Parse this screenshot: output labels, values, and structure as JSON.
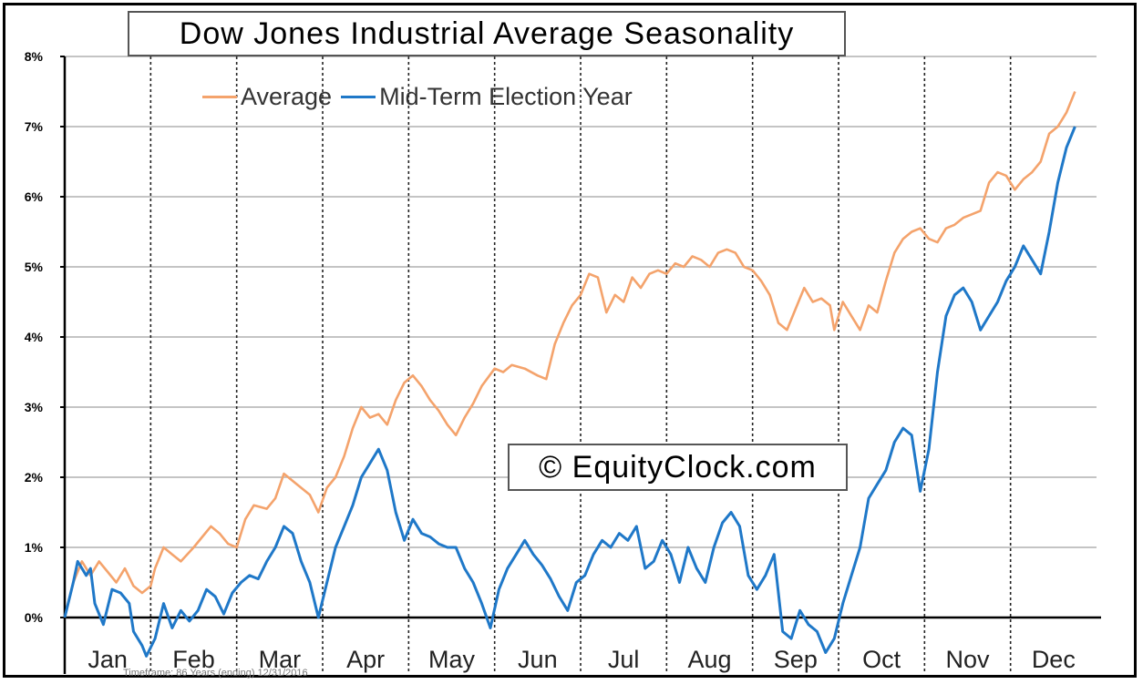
{
  "chart_data": {
    "type": "line",
    "title": "Dow Jones Industrial Average Seasonality",
    "watermark": "© EquityClock.com",
    "footnote": "Timeframe: 86 Years (ending) 12/31/2016",
    "x_categories": [
      "Jan",
      "Feb",
      "Mar",
      "Apr",
      "May",
      "Jun",
      "Jul",
      "Aug",
      "Sep",
      "Oct",
      "Nov",
      "Dec"
    ],
    "y_ticks": [
      "8%",
      "7%",
      "6%",
      "5%",
      "4%",
      "3%",
      "2%",
      "1%",
      "0%"
    ],
    "ylim": [
      -0.5,
      8
    ],
    "xlim": [
      0,
      12
    ],
    "grid": true,
    "legend_placement": "top-left",
    "series": [
      {
        "name": "Average",
        "color": "#F4A36C",
        "points": [
          [
            0,
            0
          ],
          [
            0.1,
            0.5
          ],
          [
            0.2,
            0.8
          ],
          [
            0.3,
            0.6
          ],
          [
            0.4,
            0.8
          ],
          [
            0.5,
            0.65
          ],
          [
            0.6,
            0.5
          ],
          [
            0.7,
            0.7
          ],
          [
            0.8,
            0.45
          ],
          [
            0.9,
            0.35
          ],
          [
            1.0,
            0.45
          ],
          [
            1.05,
            0.7
          ],
          [
            1.15,
            1.0
          ],
          [
            1.25,
            0.9
          ],
          [
            1.35,
            0.8
          ],
          [
            1.5,
            1.0
          ],
          [
            1.6,
            1.15
          ],
          [
            1.7,
            1.3
          ],
          [
            1.8,
            1.2
          ],
          [
            1.9,
            1.05
          ],
          [
            2.0,
            1.0
          ],
          [
            2.1,
            1.4
          ],
          [
            2.2,
            1.6
          ],
          [
            2.35,
            1.55
          ],
          [
            2.45,
            1.7
          ],
          [
            2.55,
            2.05
          ],
          [
            2.7,
            1.9
          ],
          [
            2.85,
            1.75
          ],
          [
            2.95,
            1.5
          ],
          [
            3.05,
            1.85
          ],
          [
            3.15,
            2.0
          ],
          [
            3.25,
            2.3
          ],
          [
            3.35,
            2.7
          ],
          [
            3.45,
            3.0
          ],
          [
            3.55,
            2.85
          ],
          [
            3.65,
            2.9
          ],
          [
            3.75,
            2.75
          ],
          [
            3.85,
            3.1
          ],
          [
            3.95,
            3.35
          ],
          [
            4.05,
            3.45
          ],
          [
            4.15,
            3.3
          ],
          [
            4.25,
            3.1
          ],
          [
            4.35,
            2.95
          ],
          [
            4.45,
            2.75
          ],
          [
            4.55,
            2.6
          ],
          [
            4.65,
            2.85
          ],
          [
            4.75,
            3.05
          ],
          [
            4.85,
            3.3
          ],
          [
            5.0,
            3.55
          ],
          [
            5.1,
            3.5
          ],
          [
            5.2,
            3.6
          ],
          [
            5.35,
            3.55
          ],
          [
            5.5,
            3.45
          ],
          [
            5.6,
            3.4
          ],
          [
            5.7,
            3.9
          ],
          [
            5.8,
            4.2
          ],
          [
            5.9,
            4.45
          ],
          [
            6.0,
            4.6
          ],
          [
            6.1,
            4.9
          ],
          [
            6.2,
            4.85
          ],
          [
            6.3,
            4.35
          ],
          [
            6.4,
            4.6
          ],
          [
            6.5,
            4.5
          ],
          [
            6.6,
            4.85
          ],
          [
            6.7,
            4.7
          ],
          [
            6.8,
            4.9
          ],
          [
            6.9,
            4.95
          ],
          [
            7.0,
            4.9
          ],
          [
            7.1,
            5.05
          ],
          [
            7.2,
            5.0
          ],
          [
            7.3,
            5.15
          ],
          [
            7.4,
            5.1
          ],
          [
            7.5,
            5.0
          ],
          [
            7.6,
            5.2
          ],
          [
            7.7,
            5.25
          ],
          [
            7.8,
            5.2
          ],
          [
            7.9,
            5.0
          ],
          [
            8.0,
            4.95
          ],
          [
            8.1,
            4.8
          ],
          [
            8.2,
            4.6
          ],
          [
            8.3,
            4.2
          ],
          [
            8.4,
            4.1
          ],
          [
            8.5,
            4.4
          ],
          [
            8.6,
            4.7
          ],
          [
            8.7,
            4.5
          ],
          [
            8.8,
            4.55
          ],
          [
            8.9,
            4.45
          ],
          [
            8.95,
            4.1
          ],
          [
            9.05,
            4.5
          ],
          [
            9.15,
            4.3
          ],
          [
            9.25,
            4.1
          ],
          [
            9.35,
            4.45
          ],
          [
            9.45,
            4.35
          ],
          [
            9.55,
            4.8
          ],
          [
            9.65,
            5.2
          ],
          [
            9.75,
            5.4
          ],
          [
            9.85,
            5.5
          ],
          [
            9.95,
            5.55
          ],
          [
            10.05,
            5.4
          ],
          [
            10.15,
            5.35
          ],
          [
            10.25,
            5.55
          ],
          [
            10.35,
            5.6
          ],
          [
            10.45,
            5.7
          ],
          [
            10.55,
            5.75
          ],
          [
            10.65,
            5.8
          ],
          [
            10.75,
            6.2
          ],
          [
            10.85,
            6.35
          ],
          [
            10.95,
            6.3
          ],
          [
            11.05,
            6.1
          ],
          [
            11.15,
            6.25
          ],
          [
            11.25,
            6.35
          ],
          [
            11.35,
            6.5
          ],
          [
            11.45,
            6.9
          ],
          [
            11.55,
            7.0
          ],
          [
            11.65,
            7.2
          ],
          [
            11.75,
            7.5
          ]
        ]
      },
      {
        "name": "Mid-Term Election Year",
        "color": "#1F78C8",
        "points": [
          [
            0,
            0
          ],
          [
            0.1,
            0.5
          ],
          [
            0.15,
            0.8
          ],
          [
            0.25,
            0.6
          ],
          [
            0.3,
            0.7
          ],
          [
            0.35,
            0.2
          ],
          [
            0.45,
            -0.1
          ],
          [
            0.55,
            0.4
          ],
          [
            0.65,
            0.35
          ],
          [
            0.75,
            0.2
          ],
          [
            0.8,
            -0.2
          ],
          [
            0.9,
            -0.4
          ],
          [
            0.95,
            -0.55
          ],
          [
            1.05,
            -0.3
          ],
          [
            1.15,
            0.2
          ],
          [
            1.25,
            -0.15
          ],
          [
            1.35,
            0.1
          ],
          [
            1.45,
            -0.05
          ],
          [
            1.55,
            0.1
          ],
          [
            1.65,
            0.4
          ],
          [
            1.75,
            0.3
          ],
          [
            1.85,
            0.05
          ],
          [
            1.95,
            0.35
          ],
          [
            2.05,
            0.5
          ],
          [
            2.15,
            0.6
          ],
          [
            2.25,
            0.55
          ],
          [
            2.35,
            0.8
          ],
          [
            2.45,
            1.0
          ],
          [
            2.55,
            1.3
          ],
          [
            2.65,
            1.2
          ],
          [
            2.75,
            0.8
          ],
          [
            2.85,
            0.5
          ],
          [
            2.95,
            0.0
          ],
          [
            3.05,
            0.5
          ],
          [
            3.15,
            1.0
          ],
          [
            3.25,
            1.3
          ],
          [
            3.35,
            1.6
          ],
          [
            3.45,
            2.0
          ],
          [
            3.55,
            2.2
          ],
          [
            3.65,
            2.4
          ],
          [
            3.75,
            2.1
          ],
          [
            3.85,
            1.5
          ],
          [
            3.95,
            1.1
          ],
          [
            4.05,
            1.4
          ],
          [
            4.15,
            1.2
          ],
          [
            4.25,
            1.15
          ],
          [
            4.35,
            1.05
          ],
          [
            4.45,
            1.0
          ],
          [
            4.55,
            1.0
          ],
          [
            4.65,
            0.7
          ],
          [
            4.75,
            0.5
          ],
          [
            4.85,
            0.2
          ],
          [
            4.95,
            -0.15
          ],
          [
            5.05,
            0.4
          ],
          [
            5.15,
            0.7
          ],
          [
            5.25,
            0.9
          ],
          [
            5.35,
            1.1
          ],
          [
            5.45,
            0.9
          ],
          [
            5.55,
            0.75
          ],
          [
            5.65,
            0.55
          ],
          [
            5.75,
            0.3
          ],
          [
            5.85,
            0.1
          ],
          [
            5.95,
            0.5
          ],
          [
            6.05,
            0.6
          ],
          [
            6.15,
            0.9
          ],
          [
            6.25,
            1.1
          ],
          [
            6.35,
            1.0
          ],
          [
            6.45,
            1.2
          ],
          [
            6.55,
            1.1
          ],
          [
            6.65,
            1.3
          ],
          [
            6.75,
            0.7
          ],
          [
            6.85,
            0.8
          ],
          [
            6.95,
            1.1
          ],
          [
            7.05,
            0.9
          ],
          [
            7.15,
            0.5
          ],
          [
            7.25,
            1.0
          ],
          [
            7.35,
            0.7
          ],
          [
            7.45,
            0.5
          ],
          [
            7.55,
            1.0
          ],
          [
            7.65,
            1.35
          ],
          [
            7.75,
            1.5
          ],
          [
            7.85,
            1.3
          ],
          [
            7.95,
            0.6
          ],
          [
            8.05,
            0.4
          ],
          [
            8.15,
            0.6
          ],
          [
            8.25,
            0.9
          ],
          [
            8.35,
            -0.2
          ],
          [
            8.45,
            -0.3
          ],
          [
            8.55,
            0.1
          ],
          [
            8.65,
            -0.1
          ],
          [
            8.75,
            -0.2
          ],
          [
            8.85,
            -0.5
          ],
          [
            8.95,
            -0.3
          ],
          [
            9.05,
            0.2
          ],
          [
            9.15,
            0.6
          ],
          [
            9.25,
            1.0
          ],
          [
            9.35,
            1.7
          ],
          [
            9.45,
            1.9
          ],
          [
            9.55,
            2.1
          ],
          [
            9.65,
            2.5
          ],
          [
            9.75,
            2.7
          ],
          [
            9.85,
            2.6
          ],
          [
            9.95,
            1.8
          ],
          [
            10.05,
            2.4
          ],
          [
            10.15,
            3.5
          ],
          [
            10.25,
            4.3
          ],
          [
            10.35,
            4.6
          ],
          [
            10.45,
            4.7
          ],
          [
            10.55,
            4.5
          ],
          [
            10.65,
            4.1
          ],
          [
            10.75,
            4.3
          ],
          [
            10.85,
            4.5
          ],
          [
            10.95,
            4.8
          ],
          [
            11.05,
            5.0
          ],
          [
            11.15,
            5.3
          ],
          [
            11.25,
            5.1
          ],
          [
            11.35,
            4.9
          ],
          [
            11.45,
            5.5
          ],
          [
            11.55,
            6.2
          ],
          [
            11.65,
            6.7
          ],
          [
            11.75,
            7.0
          ]
        ]
      }
    ]
  }
}
